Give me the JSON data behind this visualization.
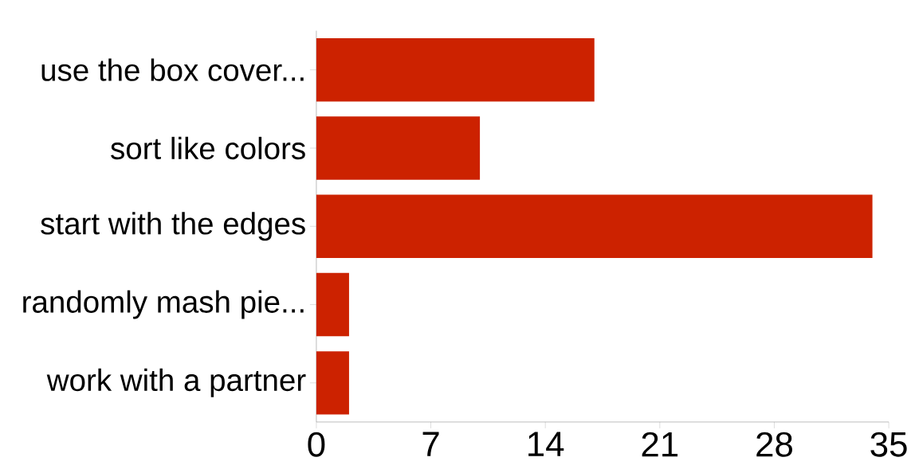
{
  "chart_data": {
    "type": "bar",
    "orientation": "horizontal",
    "categories": [
      "use the box cover...",
      "sort like colors",
      "start with the edges",
      "randomly mash pie...",
      "work with a partner"
    ],
    "values": [
      17,
      10,
      34,
      2,
      2
    ],
    "color": "#cc2200",
    "xlim": [
      0,
      35
    ],
    "xticks": [
      0,
      7,
      14,
      21,
      28,
      35
    ]
  }
}
